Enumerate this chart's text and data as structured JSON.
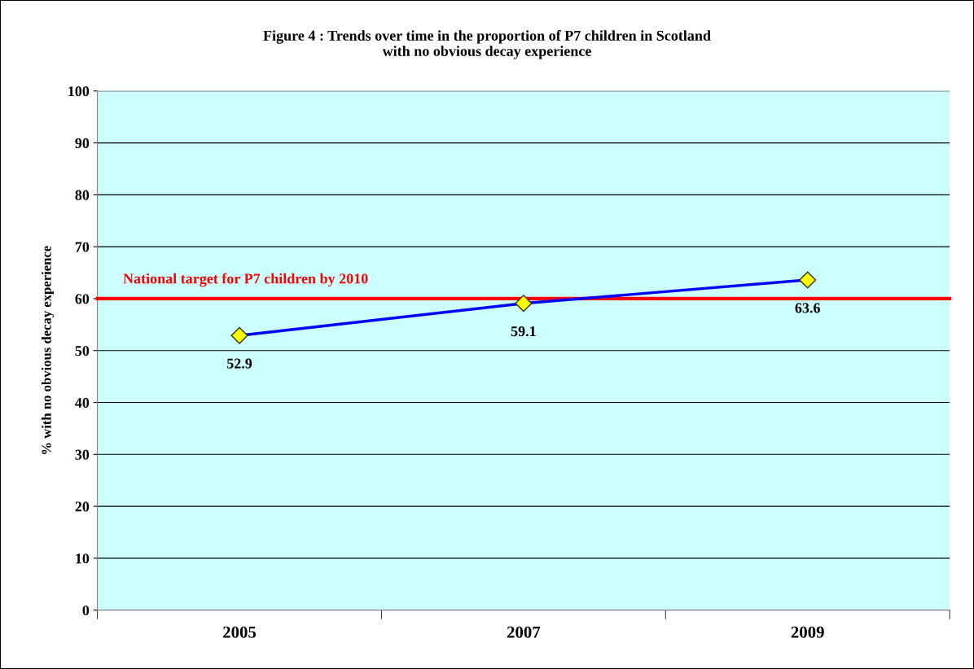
{
  "chart_data": {
    "type": "line",
    "title": "Figure 4 : Trends over time in the proportion of P7 children in Scotland\nwith no obvious decay experience",
    "ylabel": "% with no obvious decay experience",
    "categories": [
      "2005",
      "2007",
      "2009"
    ],
    "series": [
      {
        "color": "#0000ff",
        "values": [
          52.9,
          59.1,
          63.6
        ]
      }
    ],
    "ylim": [
      0,
      100
    ],
    "yticks": [
      0,
      10,
      20,
      30,
      40,
      50,
      60,
      70,
      80,
      90,
      100
    ],
    "ref_lines": [
      {
        "axis": "y",
        "value": 60,
        "label": "National target for P7 children by 2010",
        "color": "#ff0000"
      }
    ],
    "data_labels": true,
    "grid": "y",
    "marker": "diamond",
    "line_style": "solid"
  }
}
